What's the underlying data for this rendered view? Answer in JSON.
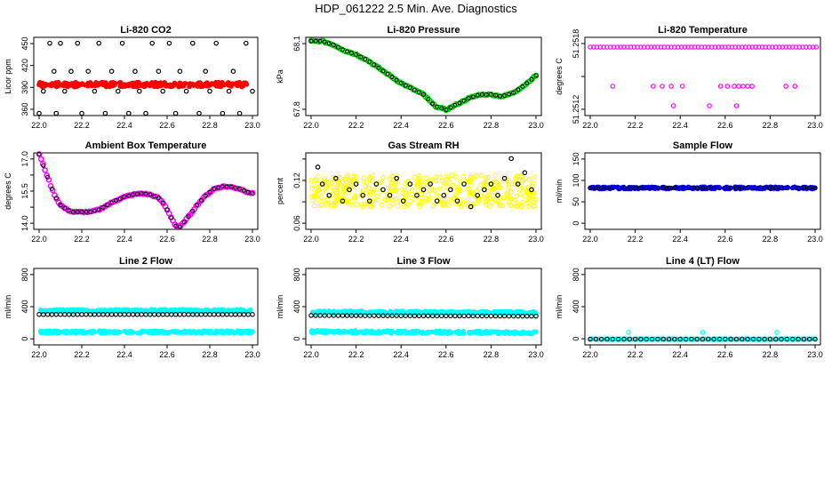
{
  "figure": {
    "title": "HDP_061222  2.5 Min. Ave. Diagnostics"
  },
  "chart_data": [
    {
      "type": "scatter",
      "title": "Li-820 CO2",
      "ylabel": "Licor ppm",
      "xlim": [
        22.0,
        23.0
      ],
      "ylim": [
        352,
        458
      ],
      "xticks": [
        "22.0",
        "22.2",
        "22.4",
        "22.6",
        "22.8",
        "23.0"
      ],
      "yticks": [
        "360",
        "390",
        "420",
        "450"
      ],
      "series": [
        {
          "name": "co2_fast",
          "color": "#ff0000",
          "style": "dense-band",
          "x": [
            22.0,
            23.0
          ],
          "y": [
            394,
            394
          ],
          "spread": 3
        },
        {
          "name": "co2_ave",
          "color": "#000000",
          "style": "open-circle",
          "x": [
            22.0,
            22.02,
            22.05,
            22.07,
            22.08,
            22.1,
            22.12,
            22.15,
            22.18,
            22.2,
            22.23,
            22.26,
            22.28,
            22.31,
            22.34,
            22.37,
            22.39,
            22.42,
            22.45,
            22.47,
            22.5,
            22.53,
            22.56,
            22.58,
            22.61,
            22.64,
            22.66,
            22.69,
            22.72,
            22.75,
            22.78,
            22.8,
            22.83,
            22.86,
            22.89,
            22.91,
            22.94,
            22.97,
            23.0
          ],
          "y": [
            355,
            385,
            450,
            412,
            355,
            450,
            385,
            412,
            450,
            355,
            412,
            385,
            450,
            355,
            412,
            385,
            450,
            355,
            412,
            385,
            355,
            450,
            412,
            385,
            450,
            355,
            412,
            385,
            450,
            355,
            412,
            385,
            450,
            355,
            385,
            412,
            355,
            450,
            385
          ]
        }
      ]
    },
    {
      "type": "scatter",
      "title": "Li-820 Pressure",
      "ylabel": "kPa",
      "xlim": [
        22.0,
        23.0
      ],
      "ylim": [
        67.77,
        68.18
      ],
      "xticks": [
        "22.0",
        "22.2",
        "22.4",
        "22.6",
        "22.8",
        "23.0"
      ],
      "yticks": [
        "67.8",
        "68.1"
      ],
      "series": [
        {
          "name": "pressure",
          "color": "#00cc00",
          "style": "curve-circles",
          "x": [
            22.0,
            22.05,
            22.1,
            22.15,
            22.2,
            22.25,
            22.3,
            22.35,
            22.4,
            22.45,
            22.5,
            22.55,
            22.6,
            22.65,
            22.7,
            22.75,
            22.8,
            22.85,
            22.9,
            22.95,
            23.0
          ],
          "y": [
            68.16,
            68.16,
            68.14,
            68.11,
            68.09,
            68.06,
            68.02,
            67.98,
            67.94,
            67.91,
            67.88,
            67.82,
            67.8,
            67.83,
            67.86,
            67.88,
            67.88,
            67.87,
            67.89,
            67.93,
            67.98
          ]
        }
      ]
    },
    {
      "type": "scatter",
      "title": "Li-820 Temperature",
      "ylabel": "degrees C",
      "xlim": [
        22.0,
        23.0
      ],
      "ylim": [
        51.2511,
        51.2519
      ],
      "xticks": [
        "22.0",
        "22.2",
        "22.4",
        "22.6",
        "22.8",
        "23.0"
      ],
      "yticks": [
        "51.2512",
        "",
        "51.2518"
      ],
      "series": [
        {
          "name": "temp_top",
          "color": "#ff00ff",
          "style": "open-circle-row",
          "x": [
            22.0,
            23.0
          ],
          "y": [
            51.2518,
            51.2518
          ],
          "step": 0.015
        },
        {
          "name": "temp_mid",
          "color": "#ff00ff",
          "style": "open-circle",
          "x": [
            22.1,
            22.28,
            22.32,
            22.36,
            22.41,
            22.58,
            22.61,
            22.64,
            22.66,
            22.68,
            22.7,
            22.72,
            22.87,
            22.91
          ],
          "y": [
            51.2514,
            51.2514,
            51.2514,
            51.2514,
            51.2514,
            51.2514,
            51.2514,
            51.2514,
            51.2514,
            51.2514,
            51.2514,
            51.2514,
            51.2514,
            51.2514
          ]
        },
        {
          "name": "temp_low",
          "color": "#ff00ff",
          "style": "open-circle",
          "x": [
            22.37,
            22.53,
            22.65
          ],
          "y": [
            51.2512,
            51.2512,
            51.2512
          ]
        }
      ]
    },
    {
      "type": "scatter",
      "title": "Ambient Box Temperature",
      "ylabel": "degrees C",
      "xlim": [
        22.0,
        23.0
      ],
      "ylim": [
        13.95,
        17.25
      ],
      "xticks": [
        "22.0",
        "22.2",
        "22.4",
        "22.6",
        "22.8",
        "23.0"
      ],
      "yticks": [
        "14.0",
        "",
        "15.5",
        "",
        "17.0"
      ],
      "series": [
        {
          "name": "box_temp",
          "color": "#ff00ff",
          "style": "curve-circles",
          "x": [
            22.0,
            22.02,
            22.04,
            22.06,
            22.08,
            22.1,
            22.13,
            22.16,
            22.2,
            22.24,
            22.28,
            22.32,
            22.36,
            22.4,
            22.44,
            22.48,
            22.52,
            22.56,
            22.58,
            22.6,
            22.62,
            22.64,
            22.66,
            22.7,
            22.74,
            22.78,
            22.82,
            22.86,
            22.9,
            22.94,
            22.98,
            23.0
          ],
          "y": [
            17.2,
            16.7,
            16.2,
            15.7,
            15.3,
            15.0,
            14.8,
            14.7,
            14.7,
            14.7,
            14.8,
            15.0,
            15.2,
            15.35,
            15.45,
            15.5,
            15.45,
            15.3,
            15.1,
            14.8,
            14.45,
            14.1,
            14.05,
            14.5,
            15.0,
            15.4,
            15.7,
            15.8,
            15.78,
            15.7,
            15.55,
            15.5
          ]
        }
      ]
    },
    {
      "type": "scatter",
      "title": "Gas Stream RH",
      "ylabel": "percent",
      "xlim": [
        22.0,
        23.0
      ],
      "ylim": [
        0.04,
        0.175
      ],
      "xticks": [
        "22.0",
        "22.2",
        "22.4",
        "22.6",
        "22.8",
        "23.0"
      ],
      "yticks": [
        "0.06",
        "",
        "0.12",
        ""
      ],
      "series": [
        {
          "name": "rh_fast",
          "color": "#ffff00",
          "style": "noisy-cloud",
          "x": [
            22.0,
            23.0
          ],
          "y": [
            0.108,
            0.108
          ],
          "spread": 0.028
        },
        {
          "name": "rh_ave",
          "color": "#000000",
          "style": "open-circle",
          "x": [
            22.03,
            22.05,
            22.08,
            22.11,
            22.14,
            22.17,
            22.2,
            22.23,
            22.26,
            22.29,
            22.32,
            22.35,
            22.38,
            22.41,
            22.44,
            22.47,
            22.5,
            22.53,
            22.56,
            22.59,
            22.62,
            22.65,
            22.68,
            22.71,
            22.74,
            22.77,
            22.8,
            22.83,
            22.86,
            22.89,
            22.92,
            22.95,
            22.98
          ],
          "y": [
            0.15,
            0.12,
            0.1,
            0.13,
            0.09,
            0.11,
            0.12,
            0.1,
            0.09,
            0.12,
            0.11,
            0.1,
            0.13,
            0.09,
            0.12,
            0.1,
            0.11,
            0.12,
            0.09,
            0.1,
            0.11,
            0.09,
            0.12,
            0.08,
            0.1,
            0.11,
            0.12,
            0.1,
            0.13,
            0.165,
            0.12,
            0.14,
            0.11
          ]
        }
      ]
    },
    {
      "type": "scatter",
      "title": "Sample Flow",
      "ylabel": "ml/min",
      "xlim": [
        22.0,
        23.0
      ],
      "ylim": [
        -20,
        220
      ],
      "xticks": [
        "22.0",
        "22.2",
        "22.4",
        "22.6",
        "22.8",
        "23.0"
      ],
      "yticks": [
        "0",
        "50",
        "100",
        "150"
      ],
      "series": [
        {
          "name": "sample_flow_fast",
          "color": "#0000ff",
          "style": "dense-band",
          "x": [
            22.0,
            23.0
          ],
          "y": [
            110,
            110
          ],
          "spread": 3
        },
        {
          "name": "sample_flow_ave",
          "color": "#000000",
          "style": "open-circle-row",
          "x": [
            22.0,
            23.0
          ],
          "y": [
            110,
            110
          ],
          "step": 0.025
        }
      ]
    },
    {
      "type": "scatter",
      "title": "Line 2 Flow",
      "ylabel": "ml/min",
      "xlim": [
        22.0,
        23.0
      ],
      "ylim": [
        -80,
        1050
      ],
      "xticks": [
        "22.0",
        "22.2",
        "22.4",
        "22.6",
        "22.8",
        "23.0"
      ],
      "yticks": [
        "0",
        "400",
        "800"
      ],
      "series": [
        {
          "name": "line2_high",
          "color": "#00ffff",
          "style": "dense-band",
          "x": [
            22.0,
            23.0
          ],
          "y": [
            425,
            425
          ],
          "spread": 18
        },
        {
          "name": "line2_low",
          "color": "#00ffff",
          "style": "dense-band",
          "x": [
            22.0,
            23.0
          ],
          "y": [
            110,
            110
          ],
          "spread": 18
        },
        {
          "name": "line2_ave",
          "color": "#000000",
          "style": "open-circle-row",
          "x": [
            22.0,
            23.0
          ],
          "y": [
            370,
            370
          ],
          "step": 0.02
        }
      ]
    },
    {
      "type": "scatter",
      "title": "Line 3 Flow",
      "ylabel": "ml/min",
      "xlim": [
        22.0,
        23.0
      ],
      "ylim": [
        -80,
        1050
      ],
      "xticks": [
        "22.0",
        "22.2",
        "22.4",
        "22.6",
        "22.8",
        "23.0"
      ],
      "yticks": [
        "0",
        "400",
        "800"
      ],
      "series": [
        {
          "name": "line3_high",
          "color": "#00ffff",
          "style": "dense-band",
          "x": [
            22.0,
            23.0
          ],
          "y": [
            405,
            395
          ],
          "spread": 18
        },
        {
          "name": "line3_low",
          "color": "#00ffff",
          "style": "dense-band",
          "x": [
            22.0,
            23.0
          ],
          "y": [
            115,
            100
          ],
          "spread": 18
        },
        {
          "name": "line3_ave",
          "color": "#000000",
          "style": "open-circle-row",
          "x": [
            22.0,
            23.0
          ],
          "y": [
            355,
            345
          ],
          "step": 0.02
        }
      ]
    },
    {
      "type": "scatter",
      "title": "Line 4 (LT) Flow",
      "ylabel": "ml/min",
      "xlim": [
        22.0,
        23.0
      ],
      "ylim": [
        -80,
        1050
      ],
      "xticks": [
        "22.0",
        "22.2",
        "22.4",
        "22.6",
        "22.8",
        "23.0"
      ],
      "yticks": [
        "0",
        "400",
        "800"
      ],
      "series": [
        {
          "name": "line4_fast",
          "color": "#00ffff",
          "style": "dense-band",
          "x": [
            22.0,
            23.0
          ],
          "y": [
            5,
            5
          ],
          "spread": 4
        },
        {
          "name": "line4_ave",
          "color": "#000000",
          "style": "open-circle-row",
          "x": [
            22.0,
            23.0
          ],
          "y": [
            5,
            5
          ],
          "step": 0.025
        },
        {
          "name": "line4_spikes",
          "color": "#00ffff",
          "style": "open-circle",
          "x": [
            22.17,
            22.5,
            22.83
          ],
          "y": [
            105,
            105,
            105
          ]
        }
      ]
    }
  ]
}
